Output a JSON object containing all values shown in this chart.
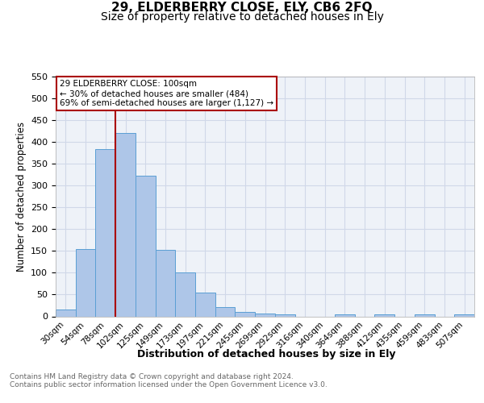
{
  "title": "29, ELDERBERRY CLOSE, ELY, CB6 2FQ",
  "subtitle": "Size of property relative to detached houses in Ely",
  "xlabel": "Distribution of detached houses by size in Ely",
  "ylabel": "Number of detached properties",
  "footnote1": "Contains HM Land Registry data © Crown copyright and database right 2024.",
  "footnote2": "Contains public sector information licensed under the Open Government Licence v3.0.",
  "categories": [
    "30sqm",
    "54sqm",
    "78sqm",
    "102sqm",
    "125sqm",
    "149sqm",
    "173sqm",
    "197sqm",
    "221sqm",
    "245sqm",
    "269sqm",
    "292sqm",
    "316sqm",
    "340sqm",
    "364sqm",
    "388sqm",
    "412sqm",
    "435sqm",
    "459sqm",
    "483sqm",
    "507sqm"
  ],
  "values": [
    15,
    155,
    384,
    420,
    322,
    153,
    100,
    55,
    21,
    10,
    6,
    4,
    0,
    0,
    5,
    0,
    5,
    0,
    5,
    0,
    5
  ],
  "bar_color": "#aec6e8",
  "bar_edge_color": "#5a9fd4",
  "vline_color": "#aa0000",
  "annotation_text": "29 ELDERBERRY CLOSE: 100sqm\n← 30% of detached houses are smaller (484)\n69% of semi-detached houses are larger (1,127) →",
  "annotation_box_color": "#aa0000",
  "ylim": [
    0,
    550
  ],
  "yticks": [
    0,
    50,
    100,
    150,
    200,
    250,
    300,
    350,
    400,
    450,
    500,
    550
  ],
  "grid_color": "#d0d8e8",
  "bg_color": "#eef2f8",
  "title_fontsize": 11,
  "subtitle_fontsize": 10
}
